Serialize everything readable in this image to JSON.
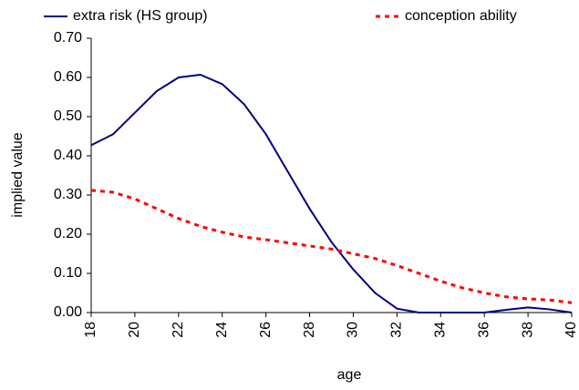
{
  "chart_data": {
    "type": "line",
    "x_label": "age",
    "y_label": "implied value",
    "x": [
      18,
      19,
      20,
      21,
      22,
      23,
      24,
      25,
      26,
      27,
      28,
      29,
      30,
      31,
      32,
      33,
      34,
      35,
      36,
      37,
      38,
      39,
      40
    ],
    "series": [
      {
        "name": "extra risk (HS group)",
        "color": "#000080",
        "dash": "solid",
        "values": [
          0.427,
          0.455,
          0.51,
          0.565,
          0.6,
          0.607,
          0.583,
          0.532,
          0.455,
          0.36,
          0.265,
          0.18,
          0.11,
          0.05,
          0.01,
          0,
          0,
          0,
          0,
          0.007,
          0.013,
          0.008,
          0
        ]
      },
      {
        "name": "conception ability",
        "color": "#ff0000",
        "dash": "dashed",
        "values": [
          0.312,
          0.307,
          0.29,
          0.265,
          0.24,
          0.22,
          0.205,
          0.193,
          0.186,
          0.178,
          0.17,
          0.162,
          0.15,
          0.138,
          0.12,
          0.1,
          0.08,
          0.063,
          0.05,
          0.04,
          0.035,
          0.032,
          0.025
        ]
      }
    ],
    "xlim": [
      18,
      40
    ],
    "xticks": [
      18,
      20,
      22,
      24,
      26,
      28,
      30,
      32,
      34,
      36,
      38,
      40
    ],
    "ylim": [
      0,
      0.7
    ],
    "yticks": [
      {
        "value": 0,
        "label": "0.00"
      },
      {
        "value": 0.1,
        "label": "0.10"
      },
      {
        "value": 0.2,
        "label": "0.20"
      },
      {
        "value": 0.3,
        "label": "0.30"
      },
      {
        "value": 0.4,
        "label": "0.40"
      },
      {
        "value": 0.5,
        "label": "0.50"
      },
      {
        "value": 0.6,
        "label": "0.60"
      },
      {
        "value": 0.7,
        "label": "0.70"
      }
    ],
    "grid": false
  }
}
